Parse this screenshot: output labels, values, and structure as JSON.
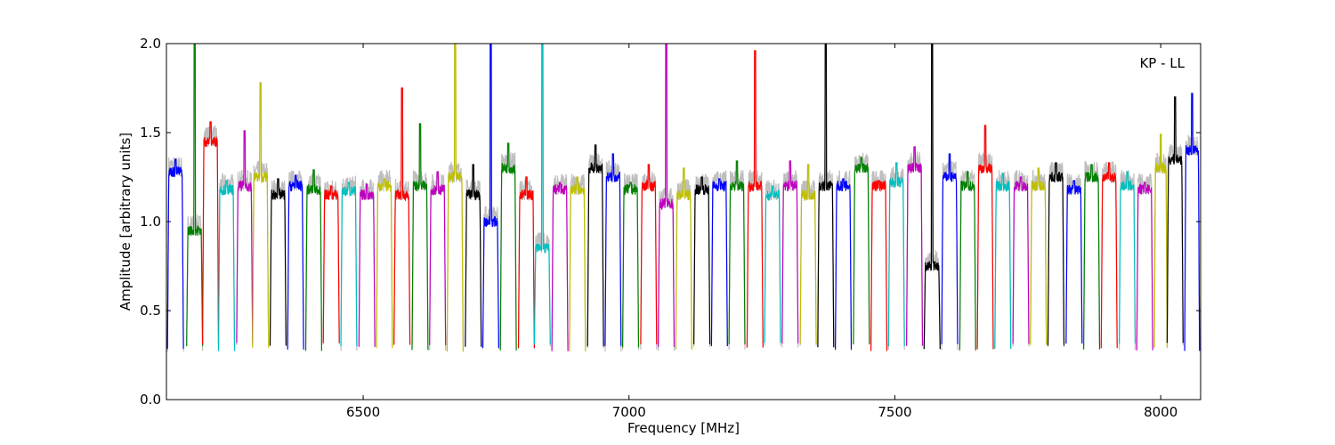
{
  "chart_data": {
    "type": "line",
    "annotation": "KP - LL",
    "xlabel": "Frequency [MHz]",
    "ylabel": "Amplitude [arbitrary units]",
    "xlim": [
      6130,
      8075
    ],
    "ylim": [
      0.0,
      2.0
    ],
    "x_ticks": [
      6500,
      7000,
      7500,
      8000
    ],
    "x_tick_labels": [
      "6500",
      "7000",
      "7500",
      "8000"
    ],
    "y_ticks": [
      0.0,
      0.5,
      1.0,
      1.5,
      2.0
    ],
    "y_tick_labels": [
      "0.0",
      "0.5",
      "1.0",
      "1.5",
      "2.0"
    ],
    "grid": false,
    "legend": "none",
    "background_color": "#bebebe",
    "series_colors": [
      "#0000ff",
      "#008000",
      "#ff0000",
      "#00bfbf",
      "#bf00bf",
      "#bfbf00",
      "#000000"
    ],
    "channels": [
      {
        "start": 6132,
        "end": 6162,
        "level": 1.28,
        "peak": 1.35,
        "color": "#0000ff"
      },
      {
        "start": 6168,
        "end": 6198,
        "level": 0.95,
        "peak": 2.0,
        "color": "#008000"
      },
      {
        "start": 6198,
        "end": 6228,
        "level": 1.45,
        "peak": 1.56,
        "color": "#ff0000"
      },
      {
        "start": 6228,
        "end": 6258,
        "level": 1.18,
        "peak": 1.23,
        "color": "#00bfbf"
      },
      {
        "start": 6262,
        "end": 6292,
        "level": 1.2,
        "peak": 1.51,
        "color": "#bf00bf"
      },
      {
        "start": 6292,
        "end": 6322,
        "level": 1.25,
        "peak": 1.78,
        "color": "#bfbf00"
      },
      {
        "start": 6325,
        "end": 6355,
        "level": 1.15,
        "peak": 1.24,
        "color": "#000000"
      },
      {
        "start": 6358,
        "end": 6388,
        "level": 1.2,
        "peak": 1.26,
        "color": "#0000ff"
      },
      {
        "start": 6392,
        "end": 6422,
        "level": 1.18,
        "peak": 1.29,
        "color": "#008000"
      },
      {
        "start": 6425,
        "end": 6455,
        "level": 1.15,
        "peak": 1.2,
        "color": "#ff0000"
      },
      {
        "start": 6458,
        "end": 6488,
        "level": 1.17,
        "peak": 1.22,
        "color": "#00bfbf"
      },
      {
        "start": 6492,
        "end": 6522,
        "level": 1.15,
        "peak": 1.21,
        "color": "#bf00bf"
      },
      {
        "start": 6525,
        "end": 6555,
        "level": 1.2,
        "peak": 1.24,
        "color": "#bfbf00"
      },
      {
        "start": 6558,
        "end": 6588,
        "level": 1.15,
        "peak": 1.75,
        "color": "#ff0000"
      },
      {
        "start": 6592,
        "end": 6622,
        "level": 1.2,
        "peak": 1.55,
        "color": "#008000"
      },
      {
        "start": 6625,
        "end": 6655,
        "level": 1.18,
        "peak": 1.28,
        "color": "#bf00bf"
      },
      {
        "start": 6658,
        "end": 6688,
        "level": 1.25,
        "peak": 2.0,
        "color": "#bfbf00"
      },
      {
        "start": 6692,
        "end": 6722,
        "level": 1.15,
        "peak": 1.32,
        "color": "#000000"
      },
      {
        "start": 6725,
        "end": 6755,
        "level": 1.0,
        "peak": 2.0,
        "color": "#0000ff"
      },
      {
        "start": 6758,
        "end": 6788,
        "level": 1.3,
        "peak": 1.44,
        "color": "#008000"
      },
      {
        "start": 6792,
        "end": 6822,
        "level": 1.15,
        "peak": 1.25,
        "color": "#ff0000"
      },
      {
        "start": 6822,
        "end": 6852,
        "level": 0.85,
        "peak": 2.0,
        "color": "#00bfbf"
      },
      {
        "start": 6855,
        "end": 6885,
        "level": 1.18,
        "peak": 1.22,
        "color": "#bf00bf"
      },
      {
        "start": 6888,
        "end": 6918,
        "level": 1.18,
        "peak": 1.25,
        "color": "#bfbf00"
      },
      {
        "start": 6922,
        "end": 6952,
        "level": 1.3,
        "peak": 1.43,
        "color": "#000000"
      },
      {
        "start": 6955,
        "end": 6985,
        "level": 1.25,
        "peak": 1.38,
        "color": "#0000ff"
      },
      {
        "start": 6988,
        "end": 7018,
        "level": 1.18,
        "peak": 1.22,
        "color": "#008000"
      },
      {
        "start": 7022,
        "end": 7052,
        "level": 1.2,
        "peak": 1.32,
        "color": "#ff0000"
      },
      {
        "start": 7055,
        "end": 7085,
        "level": 1.1,
        "peak": 2.0,
        "color": "#bf00bf"
      },
      {
        "start": 7088,
        "end": 7118,
        "level": 1.15,
        "peak": 1.3,
        "color": "#bfbf00"
      },
      {
        "start": 7122,
        "end": 7152,
        "level": 1.18,
        "peak": 1.25,
        "color": "#000000"
      },
      {
        "start": 7155,
        "end": 7185,
        "level": 1.2,
        "peak": 1.24,
        "color": "#0000ff"
      },
      {
        "start": 7188,
        "end": 7218,
        "level": 1.2,
        "peak": 1.34,
        "color": "#008000"
      },
      {
        "start": 7222,
        "end": 7252,
        "level": 1.2,
        "peak": 1.96,
        "color": "#ff0000"
      },
      {
        "start": 7255,
        "end": 7285,
        "level": 1.15,
        "peak": 1.2,
        "color": "#00bfbf"
      },
      {
        "start": 7288,
        "end": 7318,
        "level": 1.2,
        "peak": 1.34,
        "color": "#bf00bf"
      },
      {
        "start": 7322,
        "end": 7352,
        "level": 1.15,
        "peak": 1.32,
        "color": "#bfbf00"
      },
      {
        "start": 7355,
        "end": 7385,
        "level": 1.2,
        "peak": 2.0,
        "color": "#000000"
      },
      {
        "start": 7388,
        "end": 7418,
        "level": 1.2,
        "peak": 1.24,
        "color": "#0000ff"
      },
      {
        "start": 7422,
        "end": 7452,
        "level": 1.3,
        "peak": 1.36,
        "color": "#008000"
      },
      {
        "start": 7455,
        "end": 7485,
        "level": 1.2,
        "peak": 1.23,
        "color": "#ff0000"
      },
      {
        "start": 7488,
        "end": 7518,
        "level": 1.22,
        "peak": 1.33,
        "color": "#00bfbf"
      },
      {
        "start": 7522,
        "end": 7552,
        "level": 1.3,
        "peak": 1.42,
        "color": "#bf00bf"
      },
      {
        "start": 7555,
        "end": 7585,
        "level": 0.75,
        "peak": 2.0,
        "color": "#000000"
      },
      {
        "start": 7588,
        "end": 7618,
        "level": 1.25,
        "peak": 1.38,
        "color": "#0000ff"
      },
      {
        "start": 7622,
        "end": 7652,
        "level": 1.2,
        "peak": 1.28,
        "color": "#008000"
      },
      {
        "start": 7655,
        "end": 7685,
        "level": 1.3,
        "peak": 1.54,
        "color": "#ff0000"
      },
      {
        "start": 7688,
        "end": 7718,
        "level": 1.2,
        "peak": 1.27,
        "color": "#00bfbf"
      },
      {
        "start": 7722,
        "end": 7752,
        "level": 1.2,
        "peak": 1.25,
        "color": "#bf00bf"
      },
      {
        "start": 7755,
        "end": 7785,
        "level": 1.2,
        "peak": 1.3,
        "color": "#bfbf00"
      },
      {
        "start": 7788,
        "end": 7818,
        "level": 1.25,
        "peak": 1.33,
        "color": "#000000"
      },
      {
        "start": 7822,
        "end": 7852,
        "level": 1.18,
        "peak": 1.23,
        "color": "#0000ff"
      },
      {
        "start": 7855,
        "end": 7885,
        "level": 1.25,
        "peak": 1.32,
        "color": "#008000"
      },
      {
        "start": 7888,
        "end": 7918,
        "level": 1.25,
        "peak": 1.33,
        "color": "#ff0000"
      },
      {
        "start": 7922,
        "end": 7952,
        "level": 1.2,
        "peak": 1.28,
        "color": "#00bfbf"
      },
      {
        "start": 7955,
        "end": 7985,
        "level": 1.18,
        "peak": 1.22,
        "color": "#bf00bf"
      },
      {
        "start": 7988,
        "end": 8012,
        "level": 1.3,
        "peak": 1.49,
        "color": "#bfbf00"
      },
      {
        "start": 8012,
        "end": 8042,
        "level": 1.35,
        "peak": 1.7,
        "color": "#000000"
      },
      {
        "start": 8045,
        "end": 8073,
        "level": 1.4,
        "peak": 1.72,
        "color": "#0000ff"
      }
    ]
  }
}
